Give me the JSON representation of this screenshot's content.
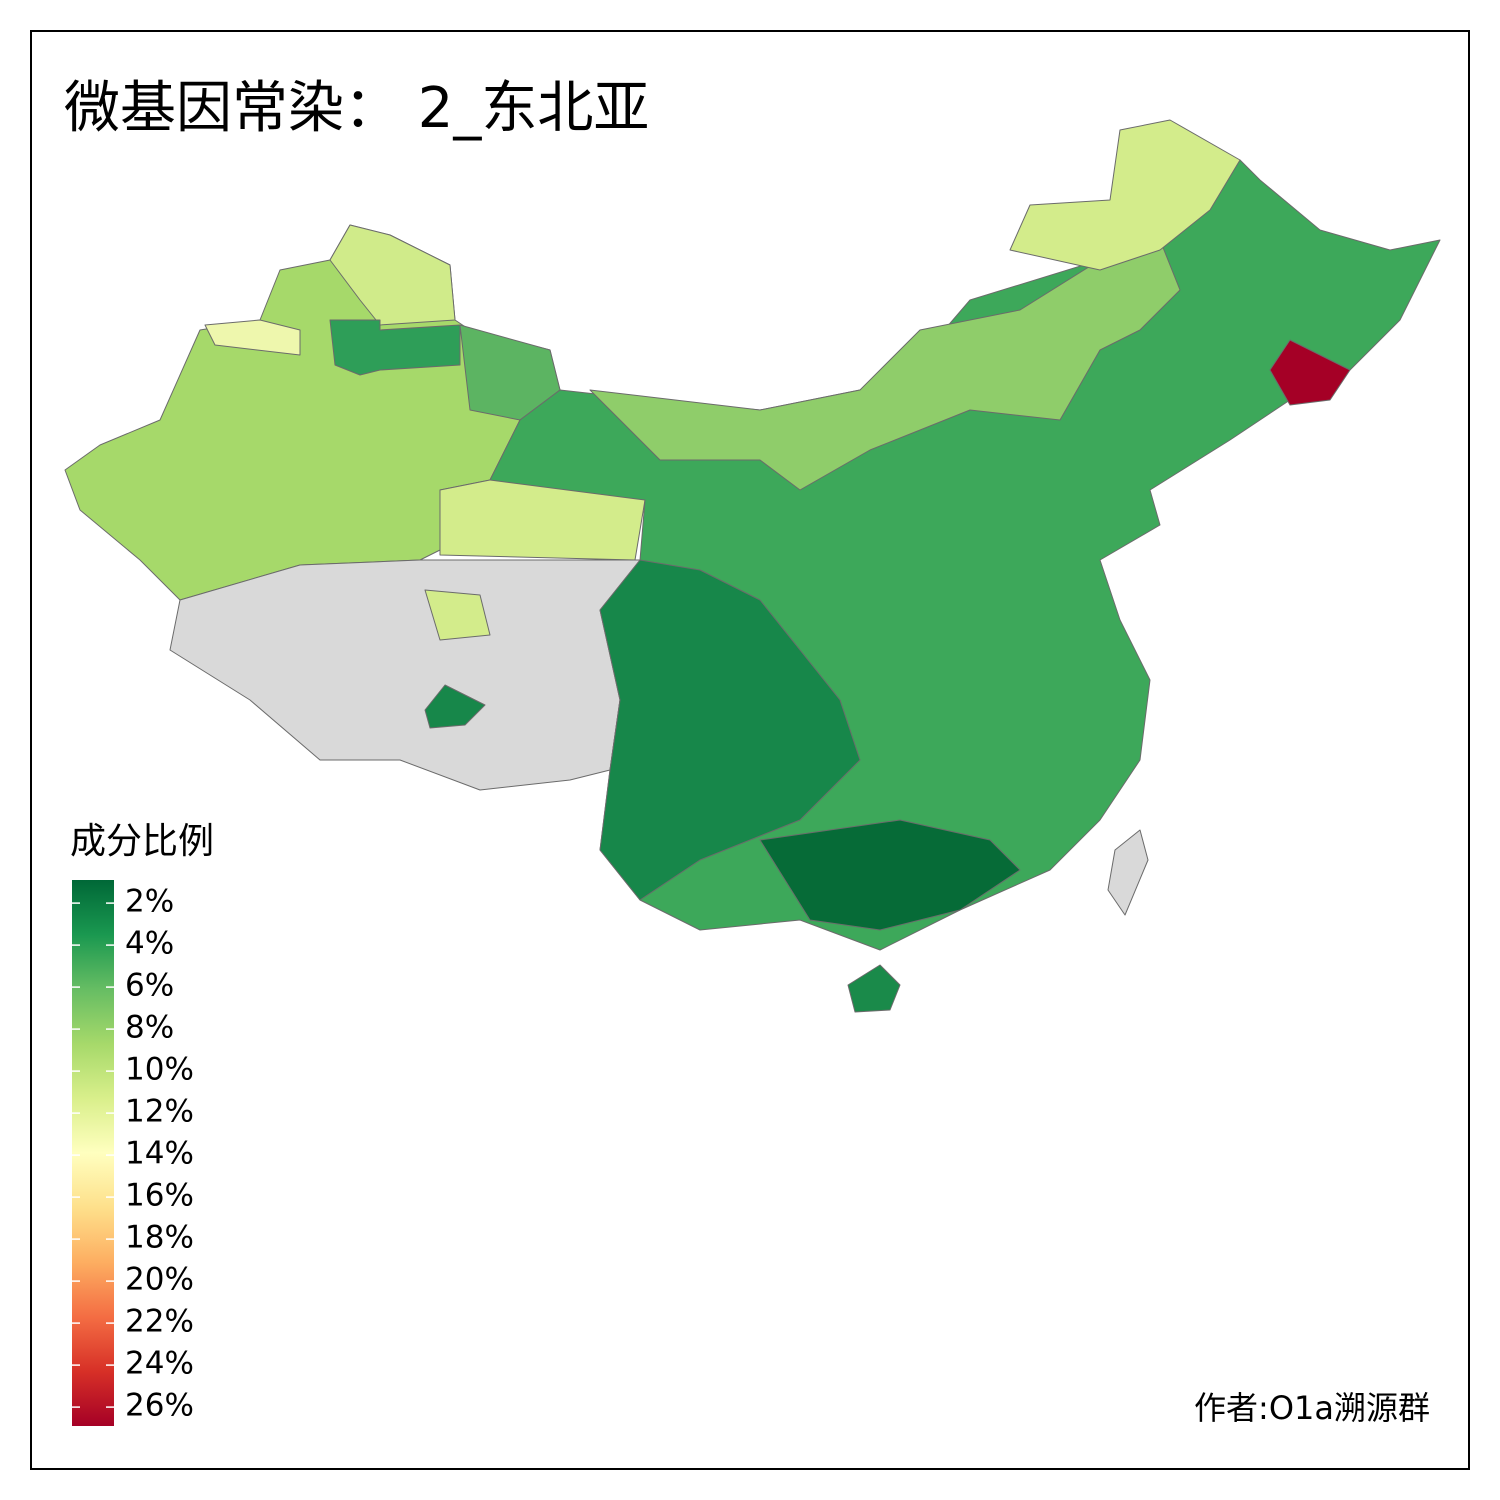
{
  "title": "微基因常染： 2_东北亚",
  "legend": {
    "title": "成分比例",
    "range": [
      0.9,
      26.9
    ],
    "colors": [
      "#006837",
      "#1a9850",
      "#66bd63",
      "#a6d96a",
      "#d9ef8b",
      "#ffffbf",
      "#fee08b",
      "#fdae61",
      "#f46d43",
      "#d73027",
      "#a50026"
    ],
    "ticks": [
      {
        "value": 2,
        "label": "2%"
      },
      {
        "value": 4,
        "label": "4%"
      },
      {
        "value": 6,
        "label": "6%"
      },
      {
        "value": 8,
        "label": "8%"
      },
      {
        "value": 10,
        "label": "10%"
      },
      {
        "value": 12,
        "label": "12%"
      },
      {
        "value": 14,
        "label": "14%"
      },
      {
        "value": 16,
        "label": "16%"
      },
      {
        "value": 18,
        "label": "18%"
      },
      {
        "value": 20,
        "label": "20%"
      },
      {
        "value": 22,
        "label": "22%"
      },
      {
        "value": 24,
        "label": "24%"
      },
      {
        "value": 26,
        "label": "26%"
      }
    ]
  },
  "author": "作者:O1a溯源群"
}
